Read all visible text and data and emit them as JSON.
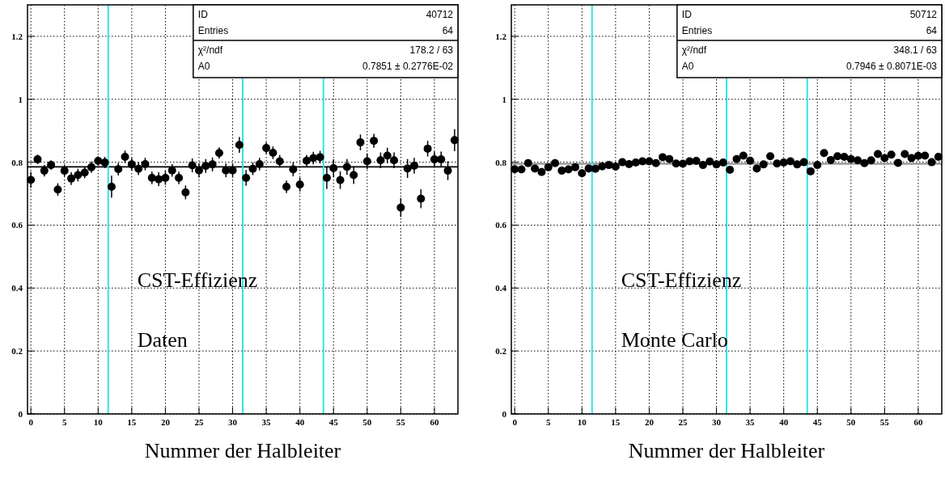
{
  "chart_data": [
    {
      "type": "scatter",
      "xlabel": "Nummer der Halbleiter",
      "x": [
        0,
        1,
        2,
        3,
        4,
        5,
        6,
        7,
        8,
        9,
        10,
        11,
        12,
        13,
        14,
        15,
        16,
        17,
        18,
        19,
        20,
        21,
        22,
        23,
        24,
        25,
        26,
        27,
        28,
        29,
        30,
        31,
        32,
        33,
        34,
        35,
        36,
        37,
        38,
        39,
        40,
        41,
        42,
        43,
        44,
        45,
        46,
        47,
        48,
        49,
        50,
        51,
        52,
        53,
        54,
        55,
        56,
        57,
        58,
        59,
        60,
        61,
        62,
        63
      ],
      "series": [
        {
          "color": "#000000",
          "values": [
            0.744,
            0.809,
            0.773,
            0.791,
            0.713,
            0.773,
            0.748,
            0.759,
            0.767,
            0.784,
            0.804,
            0.799,
            0.722,
            0.778,
            0.817,
            0.793,
            0.779,
            0.794,
            0.75,
            0.746,
            0.75,
            0.774,
            0.75,
            0.704,
            0.79,
            0.774,
            0.788,
            0.793,
            0.829,
            0.774,
            0.774,
            0.855,
            0.75,
            0.779,
            0.794,
            0.845,
            0.83,
            0.803,
            0.722,
            0.777,
            0.729,
            0.805,
            0.813,
            0.816,
            0.75,
            0.781,
            0.743,
            0.785,
            0.759,
            0.863,
            0.803,
            0.868,
            0.806,
            0.821,
            0.806,
            0.656,
            0.78,
            0.789,
            0.684,
            0.843,
            0.809,
            0.809,
            0.773,
            0.87
          ],
          "errors": [
            0.025,
            0.015,
            0.018,
            0.015,
            0.02,
            0.018,
            0.02,
            0.02,
            0.018,
            0.018,
            0.015,
            0.018,
            0.035,
            0.02,
            0.02,
            0.02,
            0.02,
            0.02,
            0.02,
            0.022,
            0.022,
            0.02,
            0.02,
            0.022,
            0.022,
            0.022,
            0.022,
            0.022,
            0.018,
            0.022,
            0.022,
            0.025,
            0.025,
            0.02,
            0.02,
            0.018,
            0.02,
            0.02,
            0.02,
            0.022,
            0.022,
            0.018,
            0.02,
            0.02,
            0.035,
            0.028,
            0.028,
            0.025,
            0.028,
            0.025,
            0.025,
            0.022,
            0.025,
            0.025,
            0.025,
            0.03,
            0.03,
            0.025,
            0.03,
            0.025,
            0.025,
            0.025,
            0.03,
            0.035
          ]
        }
      ],
      "xlim": [
        -0.5,
        63.5
      ],
      "ylim": [
        0,
        1.3
      ],
      "xticks": [
        0,
        5,
        10,
        15,
        20,
        25,
        30,
        35,
        40,
        45,
        50,
        55,
        60
      ],
      "yticks": [
        0,
        0.2,
        0.4,
        0.6,
        0.8,
        1,
        1.2
      ],
      "grid": true,
      "marker": "circle",
      "ref_lines": [
        {
          "axis": "y",
          "value": 0.7851,
          "color": "#000000"
        },
        {
          "axis": "x",
          "value": 11.5,
          "color": "#33e3ee"
        },
        {
          "axis": "x",
          "value": 31.5,
          "color": "#33e3ee"
        },
        {
          "axis": "x",
          "value": 43.5,
          "color": "#33e3ee"
        }
      ],
      "annotations": [
        "CST-Effizienz",
        "Daten",
        "ID 40712",
        "Entries 64",
        "χ²/ndf 178.2 / 63",
        "A0 0.7851 ± 0.2776E-02"
      ]
    },
    {
      "type": "scatter",
      "xlabel": "Nummer der Halbleiter",
      "x": [
        0,
        1,
        2,
        3,
        4,
        5,
        6,
        7,
        8,
        9,
        10,
        11,
        12,
        13,
        14,
        15,
        16,
        17,
        18,
        19,
        20,
        21,
        22,
        23,
        24,
        25,
        26,
        27,
        28,
        29,
        30,
        31,
        32,
        33,
        34,
        35,
        36,
        37,
        38,
        39,
        40,
        41,
        42,
        43,
        44,
        45,
        46,
        47,
        48,
        49,
        50,
        51,
        52,
        53,
        54,
        55,
        56,
        57,
        58,
        59,
        60,
        61,
        62,
        63
      ],
      "series": [
        {
          "color": "#000000",
          "values": [
            0.778,
            0.777,
            0.797,
            0.78,
            0.769,
            0.784,
            0.797,
            0.773,
            0.777,
            0.784,
            0.765,
            0.78,
            0.779,
            0.787,
            0.791,
            0.786,
            0.8,
            0.794,
            0.799,
            0.803,
            0.803,
            0.797,
            0.816,
            0.81,
            0.796,
            0.795,
            0.803,
            0.804,
            0.791,
            0.802,
            0.793,
            0.799,
            0.776,
            0.81,
            0.821,
            0.805,
            0.78,
            0.793,
            0.819,
            0.796,
            0.799,
            0.803,
            0.793,
            0.8,
            0.771,
            0.791,
            0.829,
            0.807,
            0.819,
            0.817,
            0.81,
            0.806,
            0.797,
            0.806,
            0.826,
            0.813,
            0.824,
            0.798,
            0.826,
            0.813,
            0.82,
            0.821,
            0.8,
            0.817
          ]
        }
      ],
      "xlim": [
        -0.5,
        63.5
      ],
      "ylim": [
        0,
        1.3
      ],
      "xticks": [
        0,
        5,
        10,
        15,
        20,
        25,
        30,
        35,
        40,
        45,
        50,
        55,
        60
      ],
      "yticks": [
        0,
        0.2,
        0.4,
        0.6,
        0.8,
        1,
        1.2
      ],
      "grid": true,
      "marker": "circle",
      "ref_lines": [
        {
          "axis": "y",
          "value": 0.7946,
          "color": "#808080"
        },
        {
          "axis": "x",
          "value": 11.5,
          "color": "#33e3ee"
        },
        {
          "axis": "x",
          "value": 31.5,
          "color": "#33e3ee"
        },
        {
          "axis": "x",
          "value": 43.5,
          "color": "#33e3ee"
        }
      ],
      "annotations": [
        "CST-Effizienz",
        "Monte Carlo",
        "ID 50712",
        "Entries 64",
        "χ²/ndf 348.1 / 63",
        "A0 0.7946 ± 0.8071E-03"
      ]
    }
  ]
}
